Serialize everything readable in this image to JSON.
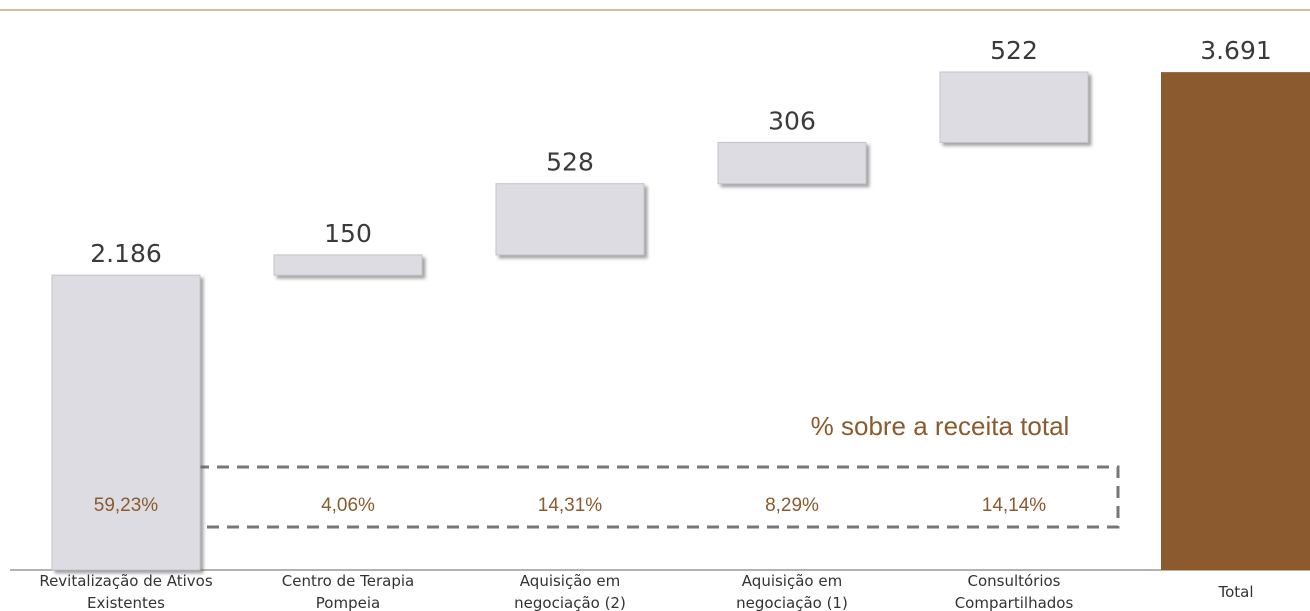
{
  "chart_data": {
    "type": "waterfall",
    "categories": [
      "Revitalização de Ativos Existentes",
      "Centro de Terapia Pompeia",
      "Aquisição em negociação (2)",
      "Aquisição em negociação (1)",
      "Consultórios Compartilhados",
      "Total"
    ],
    "values": [
      2186,
      150,
      528,
      306,
      522,
      3691
    ],
    "value_labels": [
      "2.186",
      "150",
      "528",
      "306",
      "522",
      "3.691"
    ],
    "last_is_total": true,
    "color": "#dcdce2",
    "total_color": "#8b5a2e",
    "annotation": "% sobre a receita total",
    "share_labels": [
      "59,23%",
      "4,06%",
      "14,31%",
      "8,29%",
      "14,14%"
    ]
  }
}
